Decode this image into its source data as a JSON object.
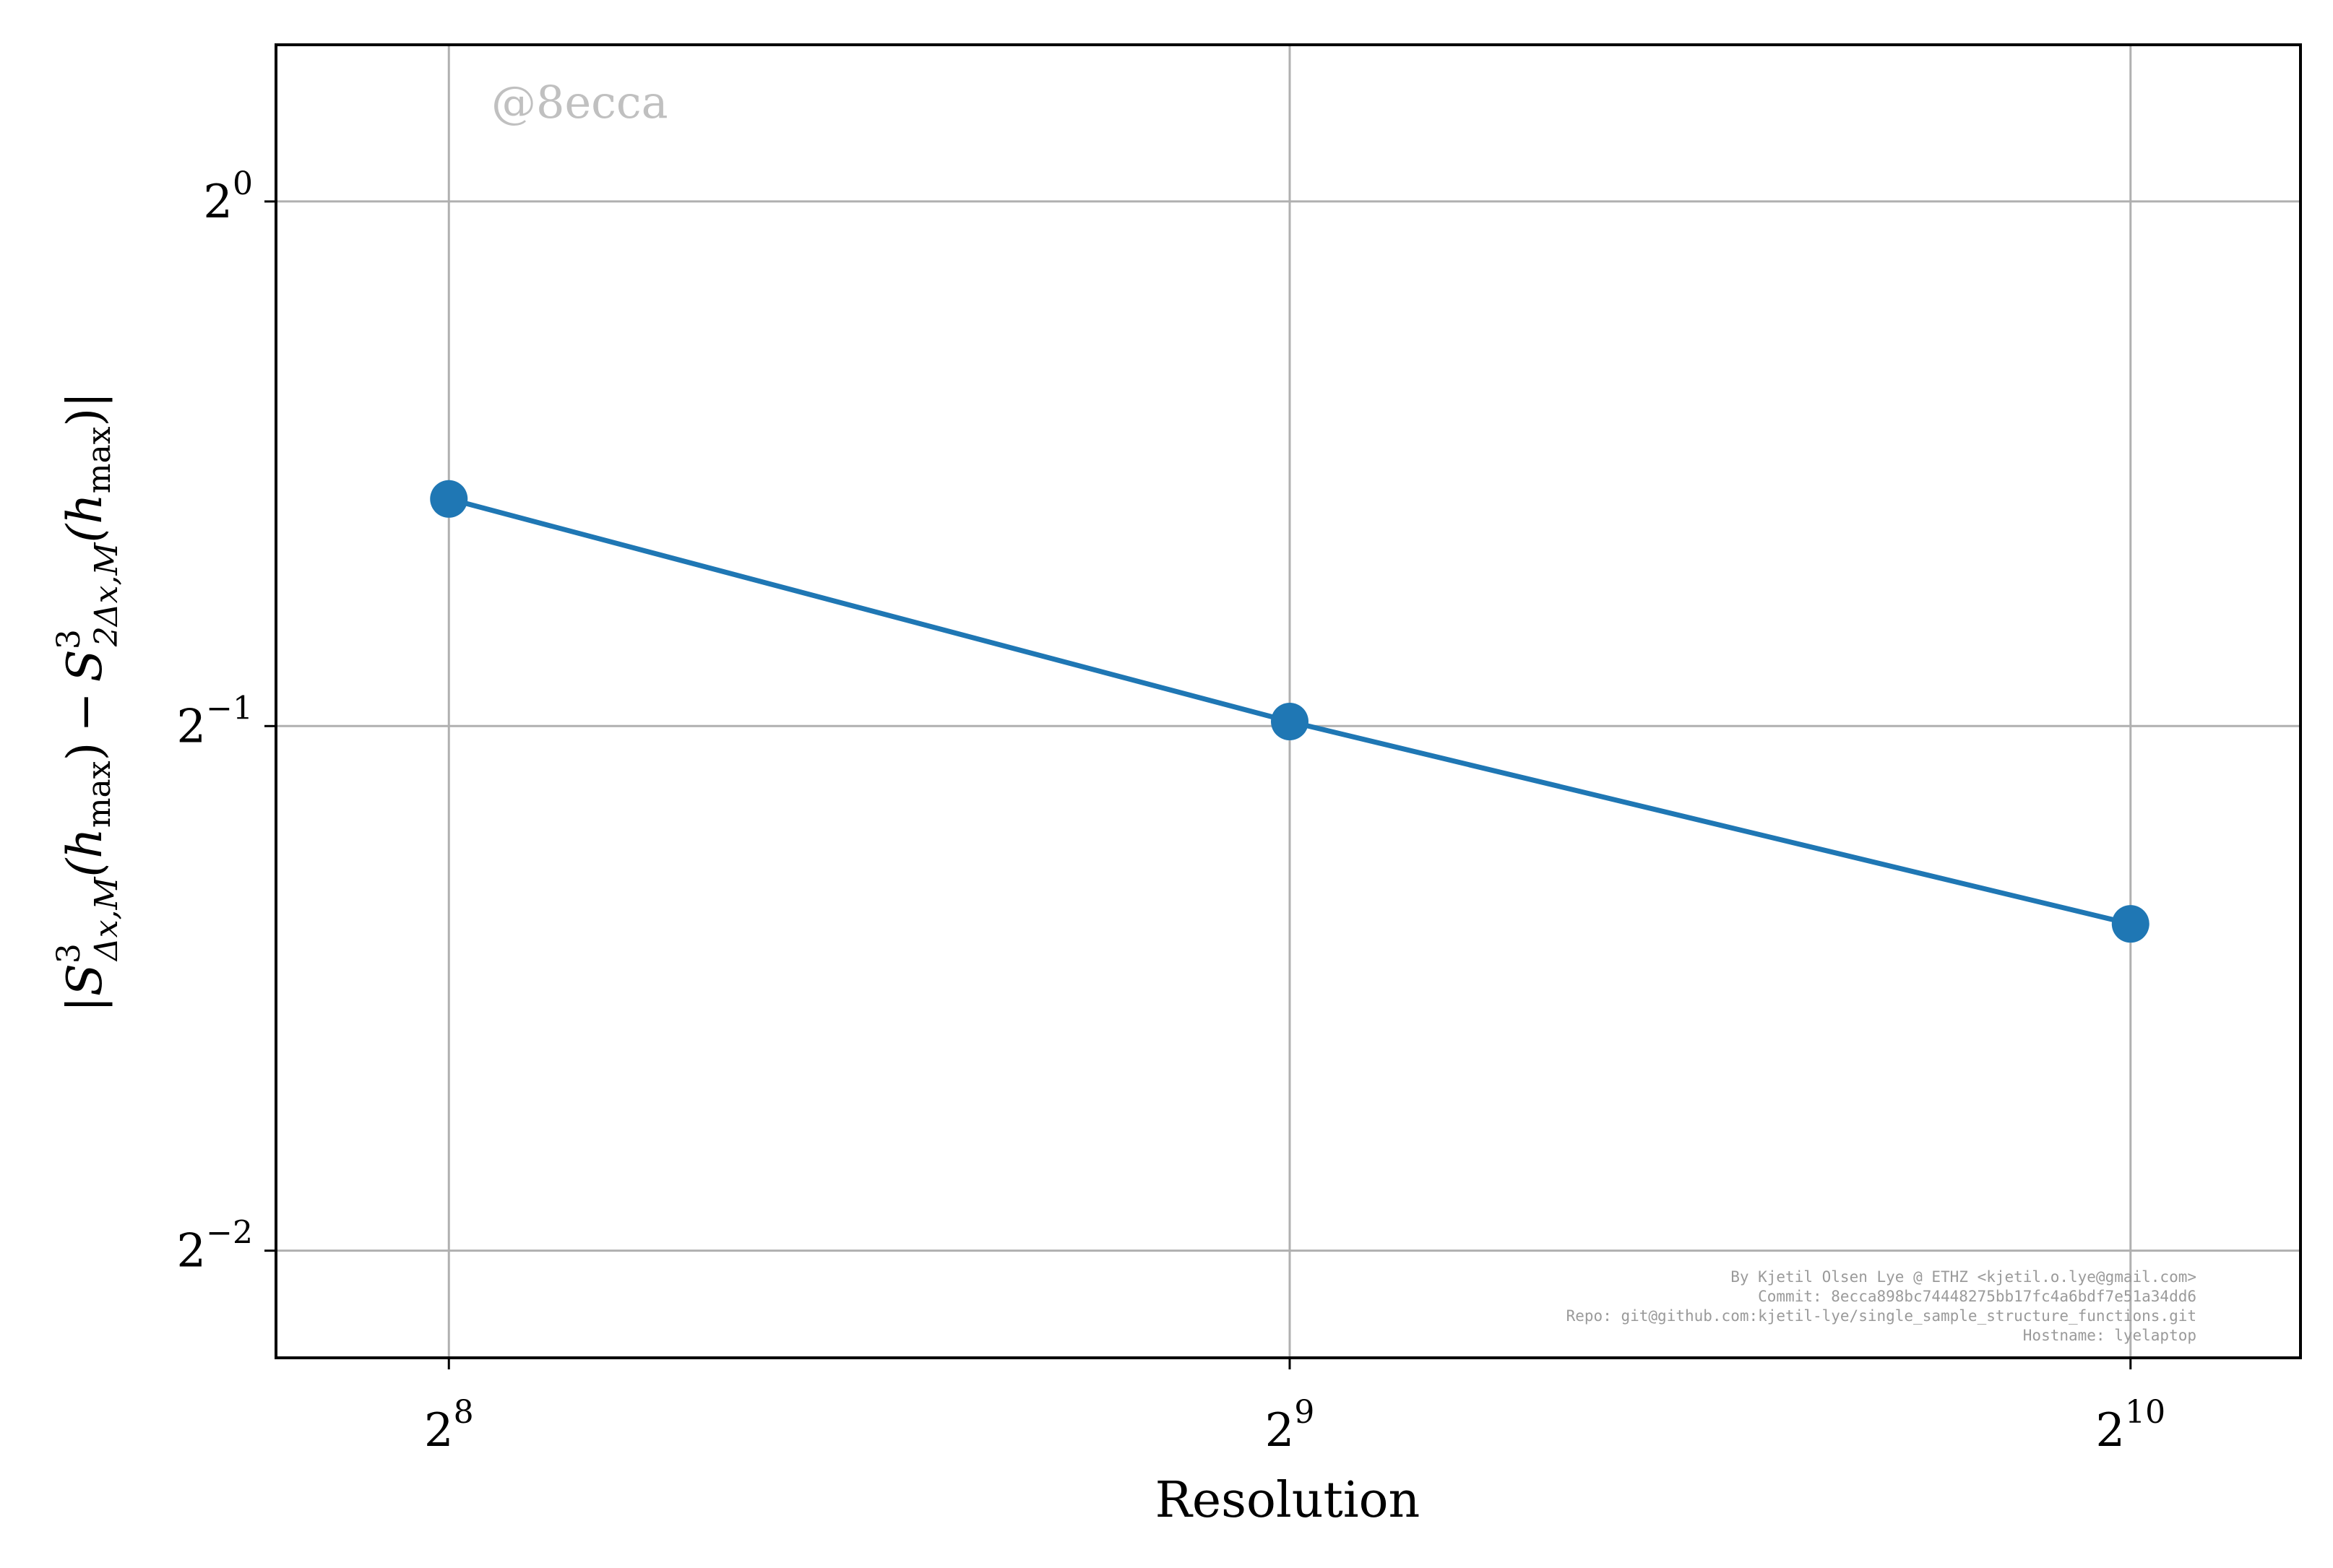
{
  "chart_data": {
    "type": "line",
    "xlabel": "Resolution",
    "ylabel": "|S^3_{Δx,M}(h_max) − S^3_{2Δx,M}(h_max)|",
    "ylabel_parts": {
      "open_bar": "|",
      "s1": "S",
      "sup1": "3",
      "sub1": "Δx,M",
      "paren1": "(h",
      "subh1": "max",
      "close1": ")",
      "minus": "−",
      "s2": "S",
      "sup2": "3",
      "sub2": "2Δx,M",
      "paren2": "(h",
      "subh2": "max",
      "close2": ")|"
    },
    "x_scale": "log2",
    "y_scale": "log2",
    "xlim": [
      222,
      1178
    ],
    "ylim": [
      0.217,
      1.23
    ],
    "grid": true,
    "xticks": [
      {
        "value": 256,
        "base": "2",
        "exp": "8"
      },
      {
        "value": 512,
        "base": "2",
        "exp": "9"
      },
      {
        "value": 1024,
        "base": "2",
        "exp": "10"
      }
    ],
    "yticks": [
      {
        "value": 1,
        "base": "2",
        "exp": "0"
      },
      {
        "value": 0.5,
        "base": "2",
        "exp": "−1"
      },
      {
        "value": 0.25,
        "base": "2",
        "exp": "−2"
      }
    ],
    "series": [
      {
        "x": [
          256,
          512,
          1024
        ],
        "y": [
          0.675,
          0.503,
          0.385
        ],
        "color": "#1f77b4",
        "marker": "circle"
      }
    ]
  },
  "watermark": "@8ecca",
  "credits": [
    "By Kjetil Olsen Lye @ ETHZ <kjetil.o.lye@gmail.com>",
    "Commit: 8ecca898bc74448275bb17fc4a6bdf7e51a34dd6",
    "Repo: git@github.com:kjetil-lye/single_sample_structure_functions.git",
    "Hostname: lyelaptop"
  ]
}
